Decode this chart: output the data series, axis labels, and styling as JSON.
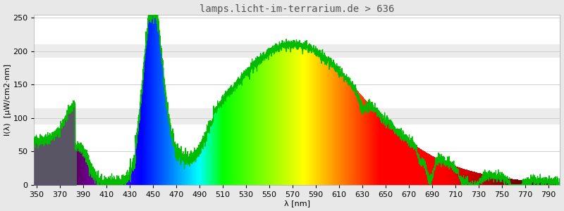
{
  "title": "lamps.licht-im-terrarium.de > 636",
  "xlabel": "λ [nm]",
  "ylabel": "I(λ)  [μW/cm2·nm]",
  "xlim": [
    348,
    800
  ],
  "ylim": [
    0,
    255
  ],
  "xticks": [
    350,
    370,
    390,
    410,
    430,
    450,
    470,
    490,
    510,
    530,
    550,
    570,
    590,
    610,
    630,
    650,
    670,
    690,
    710,
    730,
    750,
    770,
    790
  ],
  "yticks": [
    0,
    50,
    100,
    150,
    200,
    250
  ],
  "background_color": "#e8e8e8",
  "plot_bg_color": "#ffffff",
  "grid_color": "#d0d0d0",
  "title_fontsize": 10,
  "axis_fontsize": 8,
  "tick_fontsize": 8,
  "figsize": [
    8.0,
    3.0
  ],
  "dpi": 100
}
